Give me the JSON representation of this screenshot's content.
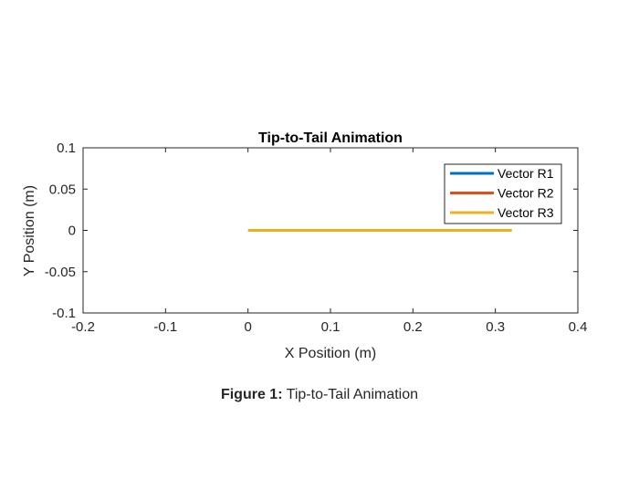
{
  "chart_data": {
    "type": "line",
    "title": "Tip-to-Tail Animation",
    "xlabel": "X Position (m)",
    "ylabel": "Y Position (m)",
    "xlim": [
      -0.2,
      0.4
    ],
    "ylim": [
      -0.1,
      0.1
    ],
    "xticks": [
      -0.2,
      -0.1,
      0,
      0.1,
      0.2,
      0.3,
      0.4
    ],
    "xtick_labels": [
      "-0.2",
      "-0.1",
      "0",
      "0.1",
      "0.2",
      "0.3",
      "0.4"
    ],
    "yticks": [
      -0.1,
      -0.05,
      0,
      0.05,
      0.1
    ],
    "ytick_labels": [
      "-0.1",
      "-0.05",
      "0",
      "0.05",
      "0.1"
    ],
    "grid": false,
    "legend_position": "top-right",
    "series": [
      {
        "name": "Vector R1",
        "color": "#0072BD",
        "x": [
          0,
          0
        ],
        "y": [
          0,
          0
        ]
      },
      {
        "name": "Vector R2",
        "color": "#D95319",
        "x": [
          0,
          0
        ],
        "y": [
          0,
          0
        ]
      },
      {
        "name": "Vector R3",
        "color": "#EDB120",
        "x": [
          0,
          0.32
        ],
        "y": [
          0,
          0
        ]
      }
    ]
  },
  "caption": {
    "label": "Figure 1:",
    "text": "Tip-to-Tail Animation"
  }
}
